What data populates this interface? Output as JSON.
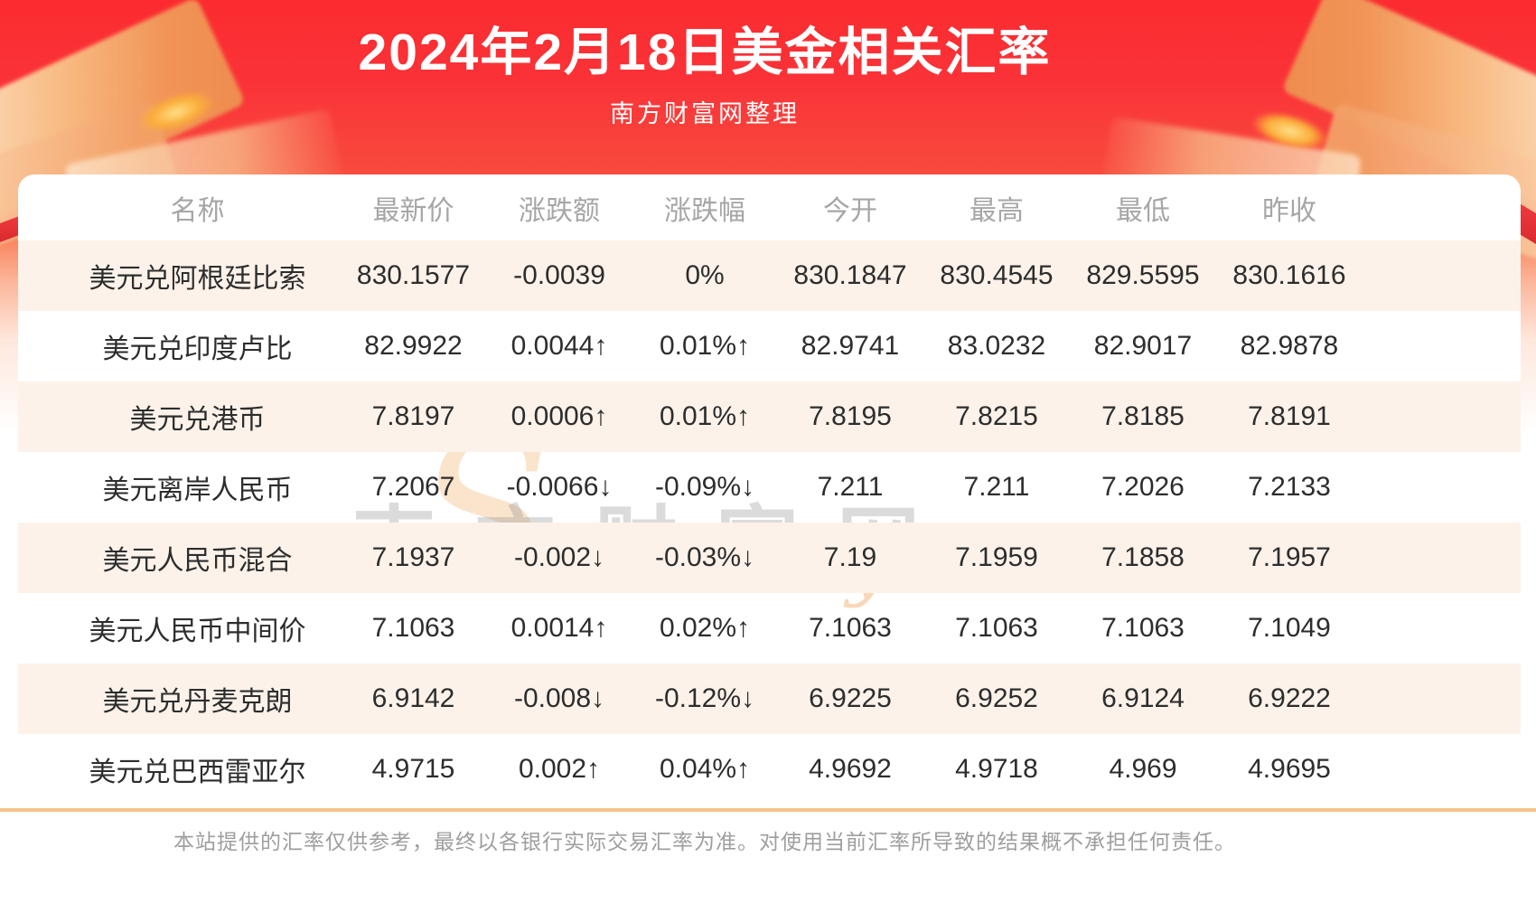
{
  "banner": {
    "title": "2024年2月18日美金相关汇率",
    "subtitle": "南方财富网整理"
  },
  "chart_data": {
    "type": "table",
    "title": "2024年2月18日美金相关汇率",
    "columns": [
      "名称",
      "最新价",
      "涨跌额",
      "涨跌幅",
      "今开",
      "最高",
      "最低",
      "昨收"
    ],
    "rows": [
      {
        "cells": [
          "美元兑阿根廷比索",
          "830.1577",
          "-0.0039",
          "0%",
          "830.1847",
          "830.4545",
          "829.5595",
          "830.1616"
        ],
        "trend": "flat"
      },
      {
        "cells": [
          "美元兑印度卢比",
          "82.9922",
          "0.0044",
          "0.01%",
          "82.9741",
          "83.0232",
          "82.9017",
          "82.9878"
        ],
        "trend": "up"
      },
      {
        "cells": [
          "美元兑港币",
          "7.8197",
          "0.0006",
          "0.01%",
          "7.8195",
          "7.8215",
          "7.8185",
          "7.8191"
        ],
        "trend": "up"
      },
      {
        "cells": [
          "美元离岸人民币",
          "7.2067",
          "-0.0066",
          "-0.09%",
          "7.211",
          "7.211",
          "7.2026",
          "7.2133"
        ],
        "trend": "down"
      },
      {
        "cells": [
          "美元人民币混合",
          "7.1937",
          "-0.002",
          "-0.03%",
          "7.19",
          "7.1959",
          "7.1858",
          "7.1957"
        ],
        "trend": "down"
      },
      {
        "cells": [
          "美元人民币中间价",
          "7.1063",
          "0.0014",
          "0.02%",
          "7.1063",
          "7.1063",
          "7.1063",
          "7.1049"
        ],
        "trend": "up"
      },
      {
        "cells": [
          "美元兑丹麦克朗",
          "6.9142",
          "-0.008",
          "-0.12%",
          "6.9225",
          "6.9252",
          "6.9124",
          "6.9222"
        ],
        "trend": "down"
      },
      {
        "cells": [
          "美元兑巴西雷亚尔",
          "4.9715",
          "0.002",
          "0.04%",
          "4.9692",
          "4.9718",
          "4.969",
          "4.9695"
        ],
        "trend": "up"
      }
    ],
    "arrow_up": "↑",
    "arrow_down": "↓"
  },
  "watermark": {
    "initial": "S",
    "cn": "南方财富网",
    "en": "outhmoney.com"
  },
  "footer": {
    "disclaimer": "本站提供的汇率仅供参考，最终以各银行实际交易汇率为准。对使用当前汇率所导致的结果概不承担任何责任。"
  },
  "colors": {
    "banner_red": "#fb2b2f",
    "up_red": "#fb2929",
    "down_green": "#13a03c",
    "row_stripe": "#fdf2ea",
    "separator_tan": "#f5c38b",
    "header_gray": "#a6a6a6"
  }
}
